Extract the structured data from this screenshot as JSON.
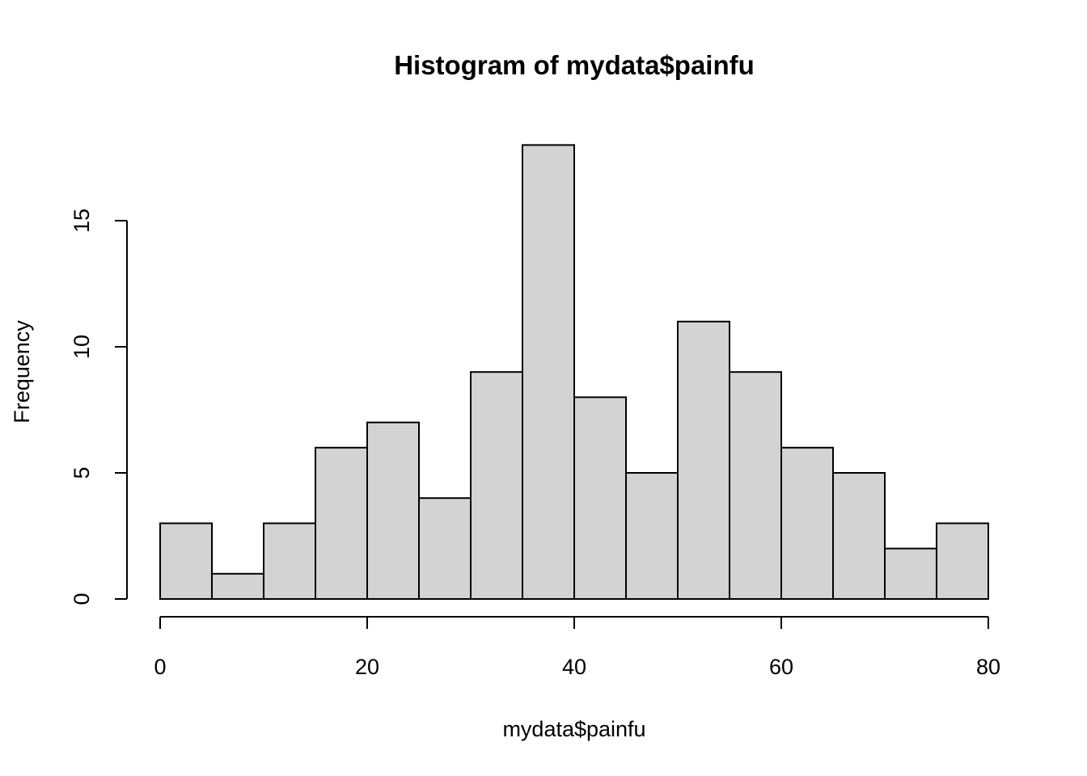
{
  "chart_data": {
    "type": "bar",
    "title": "Histogram of mydata$painfu",
    "xlabel": "mydata$painfu",
    "ylabel": "Frequency",
    "bin_edges": [
      0,
      5,
      10,
      15,
      20,
      25,
      30,
      35,
      40,
      45,
      50,
      55,
      60,
      65,
      70,
      75,
      80
    ],
    "values": [
      3,
      1,
      3,
      6,
      7,
      4,
      9,
      18,
      8,
      5,
      11,
      9,
      6,
      5,
      2,
      3
    ],
    "xlim": [
      0,
      80
    ],
    "ylim": [
      0,
      18
    ],
    "x_ticks": [
      0,
      20,
      40,
      60,
      80
    ],
    "y_ticks": [
      0,
      5,
      10,
      15
    ],
    "grid": false,
    "bar_color": "#d3d3d3",
    "edge_color": "#000000"
  }
}
